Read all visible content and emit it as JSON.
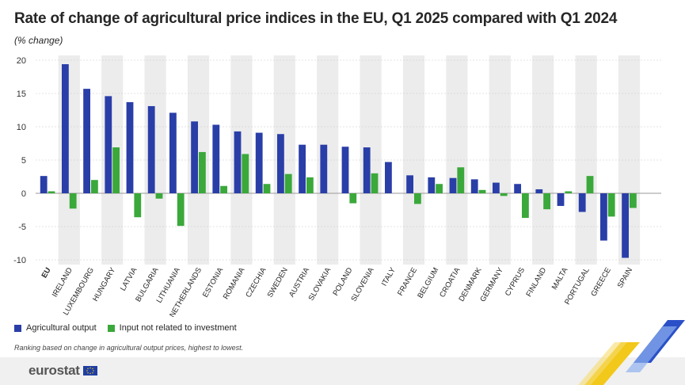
{
  "title": "Rate of change of agricultural price indices in the EU, Q1 2025 compared with Q1 2024",
  "subtitle": "(% change)",
  "note": "Ranking based on change in agricultural output prices, highest to lowest.",
  "brand": "eurostat",
  "colors": {
    "output": "#2a3ea8",
    "input": "#3aa83a",
    "band": "#ececec",
    "grid": "#c8c8c8"
  },
  "legend": [
    {
      "label": "Agricultural output",
      "color": "#2a3ea8"
    },
    {
      "label": "Input not related to investment",
      "color": "#3aa83a"
    }
  ],
  "chart_data": {
    "type": "bar",
    "title": "Rate of change of agricultural price indices in the EU, Q1 2025 compared with Q1 2024",
    "ylim": [
      -10,
      20
    ],
    "yticks": [
      20,
      15,
      10,
      5,
      0,
      -5,
      -10
    ],
    "grid": true,
    "legend_position": "bottom-left",
    "categories": [
      "EU",
      "IRELAND",
      "LUXEMBOURG",
      "HUNGARY",
      "LATVIA",
      "BULGARIA",
      "LITHUANIA",
      "NETHERLANDS",
      "ESTONIA",
      "ROMANIA",
      "CZECHIA",
      "SWEDEN",
      "AUSTRIA",
      "SLOVAKIA",
      "POLAND",
      "SLOVENIA",
      "ITALY",
      "FRANCE",
      "BELGIUM",
      "CROATIA",
      "DENMARK",
      "GERMANY",
      "CYPRUS",
      "FINLAND",
      "MALTA",
      "PORTUGAL",
      "GREECE",
      "SPAIN"
    ],
    "series": [
      {
        "name": "Agricultural output",
        "values": [
          2.6,
          19.4,
          15.7,
          14.6,
          13.7,
          13.1,
          12.1,
          10.8,
          10.3,
          9.3,
          9.1,
          8.9,
          7.3,
          7.3,
          7.0,
          6.9,
          4.7,
          2.7,
          2.4,
          2.3,
          2.1,
          1.6,
          1.4,
          0.6,
          -1.9,
          -2.8,
          -7.1,
          -9.7
        ]
      },
      {
        "name": "Input not related to investment",
        "values": [
          0.3,
          -2.3,
          2.0,
          6.9,
          -3.6,
          -0.8,
          -4.9,
          6.2,
          1.1,
          5.9,
          1.4,
          2.9,
          2.4,
          null,
          -1.5,
          3.0,
          null,
          -1.6,
          1.4,
          3.9,
          0.5,
          -0.4,
          -3.7,
          -2.4,
          0.3,
          2.6,
          -3.5,
          -2.2
        ]
      }
    ]
  }
}
